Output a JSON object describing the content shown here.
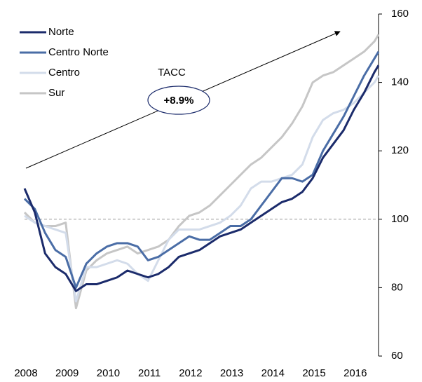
{
  "chart_data": {
    "type": "line",
    "annotations": [
      "TACC",
      "+8.9%"
    ],
    "x": [
      2008,
      2008.25,
      2008.5,
      2008.75,
      2009,
      2009.25,
      2009.5,
      2009.75,
      2010,
      2010.25,
      2010.5,
      2010.75,
      2011,
      2011.25,
      2011.5,
      2011.75,
      2012,
      2012.25,
      2012.5,
      2012.75,
      2013,
      2013.25,
      2013.5,
      2013.75,
      2014,
      2014.25,
      2014.5,
      2014.75,
      2015,
      2015.25,
      2015.5,
      2015.75,
      2016,
      2016.25,
      2016.5,
      2016.6
    ],
    "series": [
      {
        "name": "Norte",
        "color": "#1b2b6b",
        "values": [
          109,
          102,
          90,
          86,
          84,
          79,
          81,
          81,
          82,
          83,
          85,
          84,
          83,
          84,
          86,
          89,
          90,
          91,
          93,
          95,
          96,
          97,
          99,
          101,
          103,
          105,
          106,
          108,
          112,
          118,
          122,
          126,
          132,
          137,
          143,
          145
        ]
      },
      {
        "name": "Centro Norte",
        "color": "#4a6da6",
        "values": [
          106,
          103,
          96,
          91,
          89,
          80,
          87,
          90,
          92,
          93,
          93,
          92,
          88,
          89,
          91,
          93,
          95,
          94,
          94,
          96,
          98,
          98,
          100,
          104,
          108,
          112,
          112,
          111,
          113,
          120,
          125,
          130,
          136,
          142,
          147,
          149
        ]
      },
      {
        "name": "Centro",
        "color": "#d3dcea",
        "values": [
          101,
          99,
          98,
          97,
          96,
          76,
          86,
          86,
          87,
          88,
          87,
          84,
          82,
          88,
          94,
          97,
          97,
          97,
          98,
          99,
          101,
          104,
          109,
          111,
          111,
          112,
          113,
          116,
          124,
          129,
          131,
          132,
          134,
          137,
          140,
          142
        ]
      },
      {
        "name": "Sur",
        "color": "#c6c6c6",
        "values": [
          102,
          99,
          98,
          98,
          99,
          74,
          85,
          88,
          90,
          91,
          92,
          90,
          91,
          92,
          94,
          98,
          101,
          102,
          104,
          107,
          110,
          113,
          116,
          118,
          121,
          124,
          128,
          133,
          140,
          142,
          143,
          145,
          147,
          149,
          152,
          154
        ]
      }
    ],
    "xlim": [
      2008,
      2016.6
    ],
    "xticks": [
      2008,
      2009,
      2010,
      2011,
      2012,
      2013,
      2014,
      2015,
      2016
    ],
    "ylim": [
      60,
      160
    ],
    "yticks": [
      60,
      80,
      100,
      120,
      140,
      160
    ],
    "reference_line": 100,
    "legend": "top-left"
  }
}
